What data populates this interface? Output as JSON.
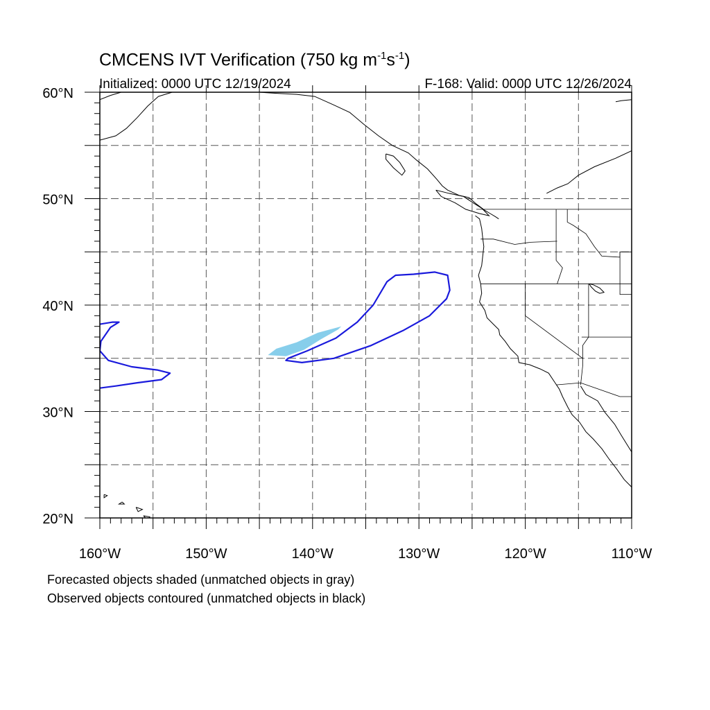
{
  "title": {
    "main": "CMCENS IVT Verification (750 kg m",
    "sup1": "-1",
    "mid": "s",
    "sup2": "-1",
    "end": ")"
  },
  "subtitle": {
    "left": "Initialized: 0000 UTC 12/19/2024",
    "right": "F-168: Valid: 0000 UTC 12/26/2024"
  },
  "footer": {
    "line1": "Forecasted objects shaded (unmatched objects in gray)",
    "line2": "Observed objects contoured (unmatched objects in black)"
  },
  "axes": {
    "lat_labels": [
      {
        "lat": 60,
        "text": "60°N"
      },
      {
        "lat": 50,
        "text": "50°N"
      },
      {
        "lat": 40,
        "text": "40°N"
      },
      {
        "lat": 30,
        "text": "30°N"
      },
      {
        "lat": 20,
        "text": "20°N"
      }
    ],
    "lon_labels": [
      {
        "lon": -160,
        "text": "160°W"
      },
      {
        "lon": -150,
        "text": "150°W"
      },
      {
        "lon": -140,
        "text": "140°W"
      },
      {
        "lon": -130,
        "text": "130°W"
      },
      {
        "lon": -120,
        "text": "120°W"
      },
      {
        "lon": -110,
        "text": "110°W"
      }
    ],
    "lon_range": [
      -160,
      -110
    ],
    "lat_range": [
      20,
      60
    ],
    "grid_lines": "dashed every 5°"
  },
  "colors": {
    "forecast_fill": "#87ceeb",
    "observed_contour": "#1a1adc",
    "coastline": "#000000",
    "grid": "#555555"
  },
  "forecast_object": {
    "points": [
      [
        -144.2,
        35.3
      ],
      [
        -143.4,
        35.9
      ],
      [
        -141.5,
        36.5
      ],
      [
        -139.5,
        37.4
      ],
      [
        -137.3,
        38.0
      ],
      [
        -137.6,
        37.7
      ],
      [
        -139.2,
        36.8
      ],
      [
        -140.8,
        35.8
      ],
      [
        -142.5,
        35.2
      ]
    ]
  },
  "observed_objects": [
    {
      "points": [
        [
          -142.5,
          34.8
        ],
        [
          -141.0,
          34.6
        ],
        [
          -138.0,
          35.0
        ],
        [
          -134.5,
          36.2
        ],
        [
          -131.5,
          37.6
        ],
        [
          -129.0,
          39.0
        ],
        [
          -127.4,
          40.6
        ],
        [
          -127.1,
          41.4
        ],
        [
          -127.3,
          42.8
        ],
        [
          -128.5,
          43.1
        ],
        [
          -130.5,
          42.9
        ],
        [
          -132.2,
          42.8
        ],
        [
          -133.0,
          42.2
        ],
        [
          -134.3,
          40.0
        ],
        [
          -135.8,
          38.4
        ],
        [
          -137.8,
          36.9
        ],
        [
          -140.5,
          35.7
        ],
        [
          -142.3,
          35.0
        ]
      ],
      "closed": true
    },
    {
      "points": [
        [
          -160.0,
          38.2
        ],
        [
          -158.8,
          38.4
        ],
        [
          -158.2,
          38.4
        ],
        [
          -159.0,
          37.9
        ],
        [
          -159.9,
          36.6
        ],
        [
          -160.0,
          35.7
        ],
        [
          -159.2,
          34.8
        ],
        [
          -157.0,
          34.2
        ],
        [
          -154.6,
          33.9
        ],
        [
          -153.4,
          33.6
        ],
        [
          -154.2,
          33.0
        ],
        [
          -156.5,
          32.7
        ],
        [
          -158.5,
          32.4
        ],
        [
          -160.0,
          32.2
        ]
      ],
      "closed": false
    }
  ],
  "coastlines": [
    [
      [
        -160,
        55.5
      ],
      [
        -158.5,
        55.9
      ],
      [
        -157.5,
        56.6
      ],
      [
        -156.5,
        57.6
      ],
      [
        -155.5,
        58.7
      ],
      [
        -154.5,
        59.6
      ],
      [
        -153.2,
        60
      ]
    ],
    [
      [
        -160,
        59.3
      ],
      [
        -159,
        59.7
      ],
      [
        -158,
        60
      ]
    ],
    [
      [
        -145,
        60
      ],
      [
        -143.5,
        59.9
      ],
      [
        -141.5,
        59.8
      ],
      [
        -139.8,
        59.6
      ],
      [
        -138,
        58.8
      ],
      [
        -136.5,
        58.1
      ],
      [
        -135.2,
        57
      ],
      [
        -133.8,
        55.9
      ],
      [
        -132.5,
        55
      ],
      [
        -131,
        54.3
      ],
      [
        -130.2,
        53.6
      ],
      [
        -129.2,
        52.8
      ],
      [
        -128.3,
        51.8
      ],
      [
        -127.8,
        51.2
      ],
      [
        -127.3,
        50.8
      ],
      [
        -126.2,
        50.3
      ],
      [
        -125.3,
        50.1
      ],
      [
        -124.6,
        49.5
      ],
      [
        -123.8,
        48.9
      ],
      [
        -123.3,
        48.6
      ],
      [
        -122.8,
        48.3
      ],
      [
        -122.5,
        48.1
      ]
    ],
    [
      [
        -133.1,
        54.2
      ],
      [
        -132.4,
        54
      ],
      [
        -131.8,
        53.4
      ],
      [
        -131.3,
        52.6
      ],
      [
        -131.6,
        52.2
      ],
      [
        -132.4,
        52.9
      ],
      [
        -133.1,
        53.7
      ],
      [
        -133.1,
        54.2
      ]
    ],
    [
      [
        -128.4,
        50.8
      ],
      [
        -127.2,
        50.5
      ],
      [
        -125.8,
        50.2
      ],
      [
        -124.9,
        49.6
      ],
      [
        -124.1,
        49.1
      ],
      [
        -123.4,
        48.4
      ],
      [
        -124.3,
        48.6
      ],
      [
        -125.6,
        49
      ],
      [
        -126.6,
        49.6
      ],
      [
        -127.9,
        50.2
      ],
      [
        -128.4,
        50.8
      ]
    ],
    [
      [
        -124.7,
        48.4
      ],
      [
        -124.3,
        48.1
      ],
      [
        -124.1,
        47.2
      ],
      [
        -124,
        46.3
      ],
      [
        -123.9,
        45.5
      ],
      [
        -124,
        44.6
      ],
      [
        -124.1,
        43.7
      ],
      [
        -124.4,
        42.8
      ],
      [
        -124.2,
        42
      ],
      [
        -124.1,
        41.1
      ],
      [
        -124.3,
        40.3
      ],
      [
        -123.8,
        39.5
      ],
      [
        -123.6,
        38.8
      ],
      [
        -123,
        38.2
      ],
      [
        -122.5,
        37.7
      ],
      [
        -122.4,
        37.2
      ],
      [
        -121.9,
        36.6
      ],
      [
        -121.4,
        35.9
      ],
      [
        -120.7,
        35.2
      ],
      [
        -120.6,
        34.6
      ],
      [
        -119.6,
        34.4
      ],
      [
        -118.6,
        34
      ],
      [
        -117.8,
        33.6
      ],
      [
        -117.2,
        32.7
      ],
      [
        -116.8,
        32.1
      ],
      [
        -116.5,
        31.4
      ],
      [
        -116,
        30.4
      ],
      [
        -115.6,
        29.7
      ],
      [
        -114.9,
        29
      ],
      [
        -114.3,
        28.1
      ],
      [
        -113.6,
        27.4
      ],
      [
        -112.8,
        26.5
      ],
      [
        -112.1,
        25.5
      ],
      [
        -111.4,
        24.6
      ],
      [
        -110.7,
        23.6
      ],
      [
        -110,
        22.9
      ]
    ],
    [
      [
        -114.8,
        32.4
      ],
      [
        -114.3,
        31.6
      ],
      [
        -113.2,
        31
      ],
      [
        -112.5,
        29.9
      ],
      [
        -111.6,
        28.8
      ],
      [
        -111,
        27.8
      ],
      [
        -110.5,
        27
      ],
      [
        -110,
        26.2
      ]
    ],
    [
      [
        -110,
        54.5
      ],
      [
        -111.5,
        53.8
      ],
      [
        -113.5,
        53
      ],
      [
        -115,
        52.2
      ],
      [
        -116,
        51.4
      ],
      [
        -117,
        51
      ],
      [
        -118,
        50.5
      ]
    ],
    [
      [
        -110,
        59.3
      ],
      [
        -111,
        59.2
      ],
      [
        -111.5,
        59.1
      ]
    ],
    [
      [
        -155.9,
        20.2
      ],
      [
        -155.5,
        19.8
      ],
      [
        -155.3,
        20.1
      ],
      [
        -155.9,
        20.2
      ]
    ],
    [
      [
        -156.6,
        21
      ],
      [
        -156,
        20.8
      ],
      [
        -156.4,
        20.6
      ],
      [
        -156.6,
        21
      ]
    ],
    [
      [
        -157.9,
        21.5
      ],
      [
        -157.7,
        21.3
      ],
      [
        -158.2,
        21.3
      ],
      [
        -157.9,
        21.5
      ]
    ],
    [
      [
        -159.6,
        22.2
      ],
      [
        -159.3,
        22.1
      ],
      [
        -159.6,
        21.9
      ],
      [
        -159.6,
        22.2
      ]
    ],
    [
      [
        -114,
        42
      ],
      [
        -113.8,
        41.7
      ],
      [
        -113.4,
        41.3
      ],
      [
        -113,
        41.1
      ],
      [
        -112.6,
        41.2
      ],
      [
        -113,
        41.6
      ],
      [
        -113.6,
        41.9
      ],
      [
        -114,
        42
      ]
    ]
  ],
  "borders": [
    [
      [
        -124.6,
        49
      ],
      [
        -110,
        49
      ]
    ],
    [
      [
        -124.2,
        46.2
      ],
      [
        -123,
        46.2
      ],
      [
        -121,
        45.7
      ],
      [
        -119.5,
        45.9
      ],
      [
        -117,
        46
      ]
    ],
    [
      [
        -117.1,
        49
      ],
      [
        -117.1,
        44.2
      ],
      [
        -116.5,
        43.5
      ],
      [
        -117,
        42
      ]
    ],
    [
      [
        -124.2,
        42
      ],
      [
        -110,
        42
      ]
    ],
    [
      [
        -120,
        42
      ],
      [
        -120,
        39
      ],
      [
        -114.6,
        35
      ],
      [
        -114.6,
        34.3
      ],
      [
        -114.8,
        32.5
      ]
    ],
    [
      [
        -114.05,
        42
      ],
      [
        -114.05,
        37
      ],
      [
        -114.6,
        36.2
      ],
      [
        -114.6,
        35
      ]
    ],
    [
      [
        -117.1,
        32.5
      ],
      [
        -114.8,
        32.7
      ],
      [
        -111.1,
        31.4
      ],
      [
        -110,
        31.4
      ]
    ],
    [
      [
        -111.1,
        45
      ],
      [
        -111.1,
        41
      ],
      [
        -110,
        41
      ]
    ],
    [
      [
        -116.05,
        49
      ],
      [
        -116.05,
        47.8
      ],
      [
        -115.5,
        47.5
      ],
      [
        -114.3,
        46.7
      ],
      [
        -113.5,
        45.5
      ],
      [
        -112.8,
        44.6
      ],
      [
        -111.1,
        44.5
      ],
      [
        -111.1,
        45
      ],
      [
        -110,
        45
      ]
    ],
    [
      [
        -114.7,
        37
      ],
      [
        -110,
        37
      ]
    ]
  ]
}
